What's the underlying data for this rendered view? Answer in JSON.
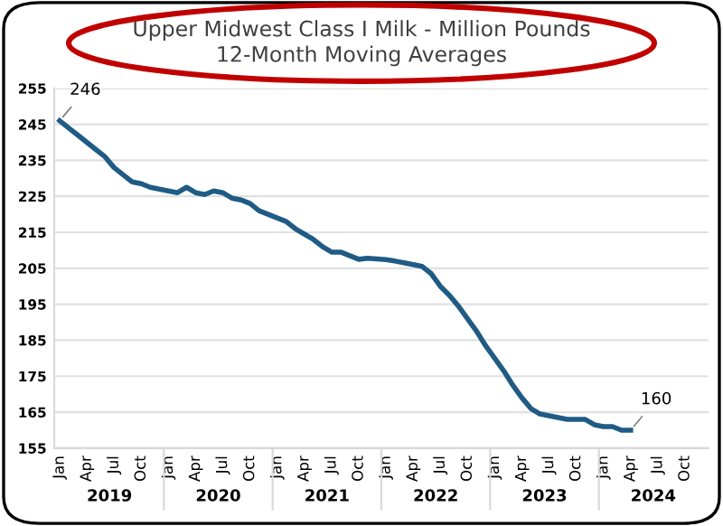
{
  "chart_data": {
    "type": "line",
    "title": "Upper Midwest Class I Milk - Million Pounds\n12-Month Moving Averages",
    "categories": [
      "Jan",
      null,
      null,
      "Apr",
      null,
      null,
      "Jul",
      null,
      null,
      "Oct",
      null,
      null,
      "Jan",
      null,
      null,
      "Apr",
      null,
      null,
      "Jul",
      null,
      null,
      "Oct",
      null,
      null,
      "Jan",
      null,
      null,
      "Apr",
      null,
      null,
      "Jul",
      null,
      null,
      "Oct",
      null,
      null,
      "Jan",
      null,
      null,
      "Apr",
      null,
      null,
      "Jul",
      null,
      null,
      "Oct",
      null,
      null,
      "Jan",
      null,
      null,
      "Apr",
      null,
      null,
      "Jul",
      null,
      null,
      "Oct",
      null,
      null,
      "Jan",
      null,
      null,
      "Apr",
      null,
      null,
      "Jul",
      null,
      null,
      "Oct",
      null,
      null
    ],
    "series": [
      {
        "color": "#1f5b85",
        "values": [
          246,
          244,
          242,
          240,
          238,
          236,
          233,
          231,
          229,
          228.5,
          227.5,
          227,
          226.5,
          226,
          227.5,
          226,
          225.5,
          226.5,
          226,
          224.5,
          224,
          223,
          221,
          220,
          219,
          218,
          216,
          214.5,
          213,
          211,
          209.5,
          209.5,
          208.5,
          207.5,
          207.8,
          207.6,
          207.4,
          207,
          206.5,
          206,
          205.5,
          203.5,
          200,
          197.5,
          194.5,
          191,
          187.5,
          183.5,
          180,
          176.5,
          172.5,
          169,
          166,
          164.5,
          164,
          163.5,
          163,
          163,
          163,
          161.5,
          161,
          161,
          160,
          160,
          null,
          null,
          null,
          null,
          null,
          null,
          null,
          null
        ],
        "value_labels": [
          "246",
          null,
          null,
          null,
          null,
          null,
          null,
          null,
          null,
          null,
          null,
          null,
          null,
          null,
          null,
          null,
          null,
          null,
          null,
          null,
          null,
          null,
          null,
          null,
          null,
          null,
          null,
          null,
          null,
          null,
          null,
          null,
          null,
          null,
          null,
          null,
          null,
          null,
          null,
          null,
          null,
          null,
          null,
          null,
          null,
          null,
          null,
          null,
          null,
          null,
          null,
          null,
          null,
          null,
          null,
          null,
          null,
          null,
          null,
          null,
          null,
          null,
          null,
          "160",
          null,
          null,
          null,
          null,
          null,
          null,
          null,
          null
        ]
      }
    ],
    "ylim": [
      155,
      255
    ],
    "yticks": [
      155,
      165,
      175,
      185,
      195,
      205,
      215,
      225,
      235,
      245,
      255
    ],
    "grid": "y",
    "legend": false,
    "marker": "none",
    "line_style": "solid",
    "annotations": [
      "2019",
      "2020",
      "2021",
      "2022",
      "2023",
      "2024"
    ]
  }
}
